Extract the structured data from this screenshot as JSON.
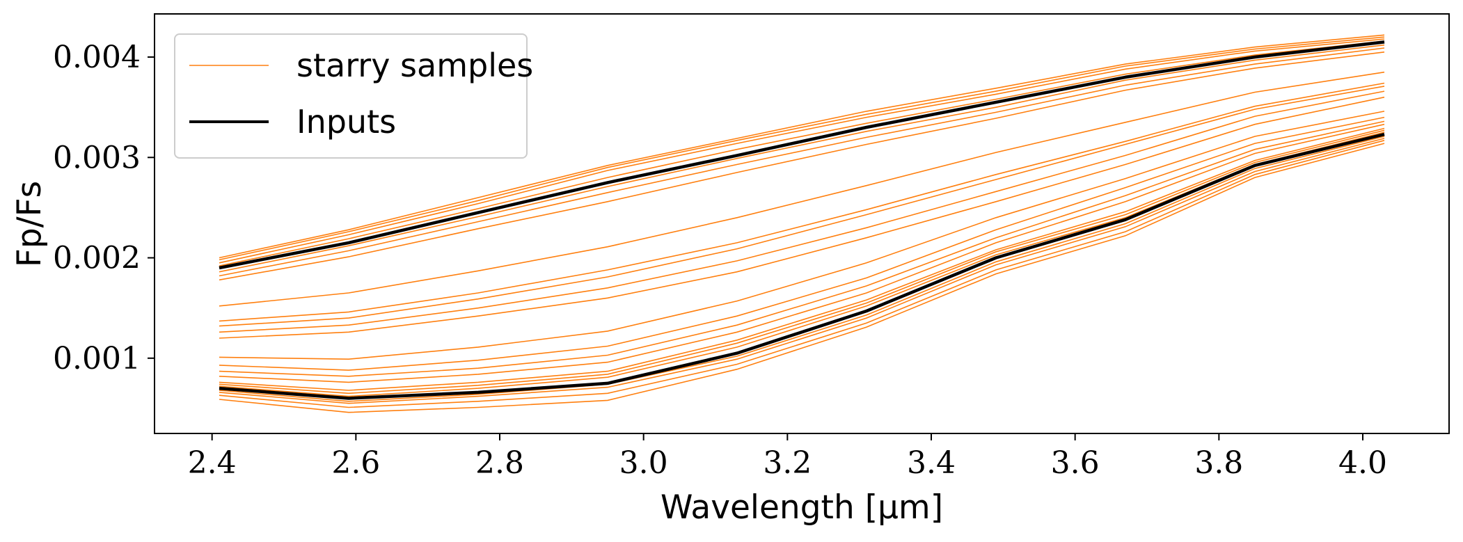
{
  "chart_data": {
    "type": "line",
    "xlabel": "Wavelength [μm]",
    "ylabel": "Fp/Fs",
    "xlim": [
      2.32,
      4.12
    ],
    "ylim": [
      0.00025,
      0.00443
    ],
    "xticks": [
      2.4,
      2.6,
      2.8,
      3.0,
      3.2,
      3.4,
      3.6,
      3.8,
      4.0
    ],
    "xtick_labels": [
      "2.4",
      "2.6",
      "2.8",
      "3.0",
      "3.2",
      "3.4",
      "3.6",
      "3.8",
      "4.0"
    ],
    "yticks": [
      0.001,
      0.002,
      0.003,
      0.004
    ],
    "ytick_labels": [
      "0.001",
      "0.002",
      "0.003",
      "0.004"
    ],
    "grid": false,
    "legend": {
      "placement": "top-left",
      "entries": [
        {
          "label": "starry samples",
          "color": "#ff7f0e"
        },
        {
          "label": "Inputs",
          "color": "#000000"
        }
      ]
    },
    "x": [
      2.41,
      2.59,
      2.77,
      2.95,
      3.13,
      3.31,
      3.49,
      3.67,
      3.85,
      4.03
    ],
    "input_series": {
      "name": "Inputs",
      "color": "#000000",
      "values": [
        0.0019,
        0.00215,
        0.00245,
        0.00275,
        0.00302,
        0.0033,
        0.00355,
        0.0038,
        0.004,
        0.00415
      ]
    },
    "sample_color": "#ff7f0e",
    "samples": [
      [
        0.002,
        0.00228,
        0.0026,
        0.00292,
        0.00319,
        0.00346,
        0.00369,
        0.00393,
        0.0041,
        0.00422
      ],
      [
        0.00198,
        0.00226,
        0.00257,
        0.0029,
        0.00317,
        0.00343,
        0.00366,
        0.00391,
        0.00408,
        0.0042
      ],
      [
        0.00195,
        0.00223,
        0.00254,
        0.00287,
        0.00314,
        0.0034,
        0.00363,
        0.00388,
        0.00406,
        0.00418
      ],
      [
        0.00192,
        0.00219,
        0.00249,
        0.0028,
        0.00308,
        0.00334,
        0.00358,
        0.00383,
        0.00402,
        0.00416
      ],
      [
        0.00186,
        0.00212,
        0.00241,
        0.00271,
        0.00299,
        0.00326,
        0.0035,
        0.00377,
        0.00397,
        0.00412
      ],
      [
        0.00182,
        0.00207,
        0.00236,
        0.00265,
        0.00293,
        0.0032,
        0.00345,
        0.00372,
        0.00393,
        0.00409
      ],
      [
        0.00178,
        0.00201,
        0.00229,
        0.00256,
        0.00285,
        0.00313,
        0.00339,
        0.00367,
        0.00389,
        0.00405
      ],
      [
        0.00152,
        0.00165,
        0.00187,
        0.00211,
        0.0024,
        0.00272,
        0.00305,
        0.00335,
        0.00365,
        0.00385
      ],
      [
        0.00137,
        0.00146,
        0.00165,
        0.00188,
        0.00215,
        0.00248,
        0.00283,
        0.00316,
        0.00351,
        0.00374
      ],
      [
        0.00132,
        0.0014,
        0.00159,
        0.00181,
        0.00209,
        0.00243,
        0.00278,
        0.00313,
        0.00348,
        0.00371
      ],
      [
        0.00126,
        0.00133,
        0.0015,
        0.0017,
        0.00197,
        0.0023,
        0.00266,
        0.00302,
        0.00341,
        0.00366
      ],
      [
        0.0012,
        0.00126,
        0.00142,
        0.0016,
        0.00186,
        0.0022,
        0.00256,
        0.00293,
        0.00333,
        0.0036
      ],
      [
        0.00101,
        0.00099,
        0.00111,
        0.00127,
        0.00157,
        0.00195,
        0.0024,
        0.00279,
        0.00321,
        0.00346
      ],
      [
        0.00093,
        0.00088,
        0.00098,
        0.00112,
        0.00142,
        0.0018,
        0.00228,
        0.0027,
        0.00314,
        0.0034
      ],
      [
        0.00087,
        0.00082,
        0.0009,
        0.00103,
        0.00133,
        0.00172,
        0.0022,
        0.00262,
        0.00308,
        0.00336
      ],
      [
        0.00082,
        0.00076,
        0.00084,
        0.00096,
        0.00126,
        0.00165,
        0.00215,
        0.00256,
        0.00304,
        0.00333
      ],
      [
        0.00076,
        0.00068,
        0.00076,
        0.00087,
        0.00118,
        0.00158,
        0.00208,
        0.00246,
        0.00297,
        0.00329
      ],
      [
        0.00074,
        0.00065,
        0.00073,
        0.00084,
        0.00115,
        0.00155,
        0.00206,
        0.00243,
        0.00295,
        0.00327
      ],
      [
        0.00072,
        0.00062,
        0.0007,
        0.00081,
        0.00111,
        0.00152,
        0.00203,
        0.0024,
        0.00293,
        0.00325
      ],
      [
        0.00068,
        0.00057,
        0.00064,
        0.00074,
        0.00102,
        0.00143,
        0.00196,
        0.00234,
        0.00289,
        0.00321
      ],
      [
        0.00066,
        0.00055,
        0.00062,
        0.00071,
        0.00099,
        0.0014,
        0.00193,
        0.00231,
        0.00286,
        0.00319
      ],
      [
        0.00063,
        0.00051,
        0.00057,
        0.00065,
        0.00094,
        0.00135,
        0.00188,
        0.00226,
        0.00283,
        0.00317
      ],
      [
        0.00059,
        0.00046,
        0.00051,
        0.00058,
        0.00089,
        0.00131,
        0.00184,
        0.00222,
        0.0028,
        0.00314
      ]
    ],
    "lower_input_series": {
      "name": "Inputs",
      "color": "#000000",
      "values": [
        0.0007,
        0.0006,
        0.00066,
        0.00075,
        0.00105,
        0.00147,
        0.002,
        0.00238,
        0.00292,
        0.00323
      ]
    }
  }
}
